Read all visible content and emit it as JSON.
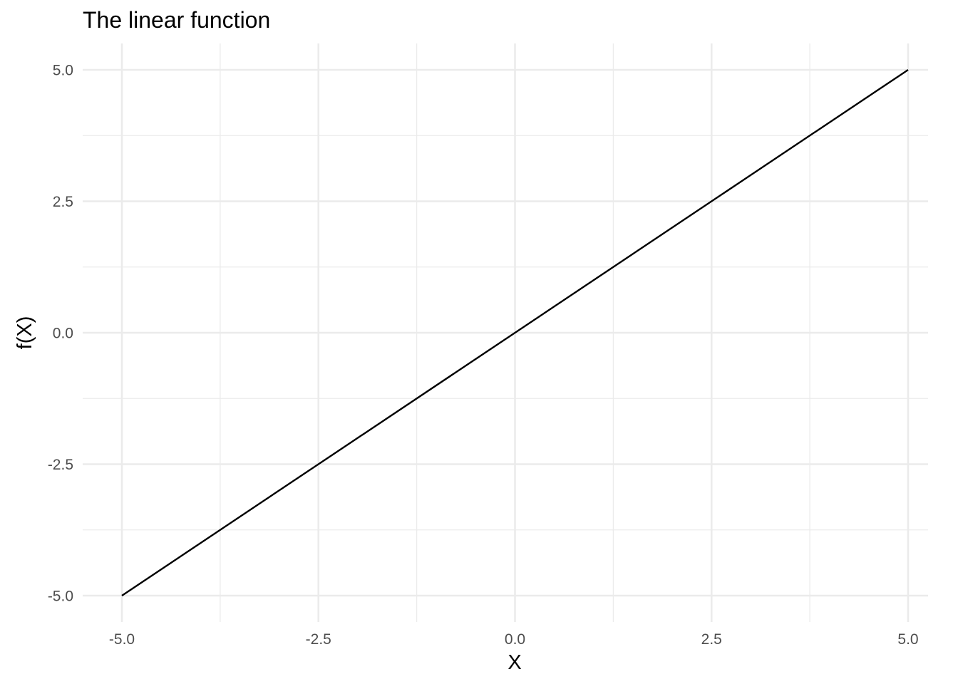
{
  "chart_data": {
    "type": "line",
    "title": "The linear function",
    "xlabel": "X",
    "ylabel": "f(X)",
    "xlim": [
      -5.0,
      5.0
    ],
    "ylim": [
      -5.0,
      5.0
    ],
    "x_ticks": [
      -5.0,
      -2.5,
      0.0,
      2.5,
      5.0
    ],
    "x_tick_labels": [
      "-5.0",
      "-2.5",
      "0.0",
      "2.5",
      "5.0"
    ],
    "y_ticks": [
      -5.0,
      -2.5,
      0.0,
      2.5,
      5.0
    ],
    "y_tick_labels": [
      "-5.0",
      "-2.5",
      "0.0",
      "2.5",
      "5.0"
    ],
    "x_minor_ticks": [
      -3.75,
      -1.25,
      1.25,
      3.75
    ],
    "y_minor_ticks": [
      -3.75,
      -1.25,
      1.25,
      3.75
    ],
    "grid": true,
    "series": [
      {
        "x": [
          -5.0,
          5.0
        ],
        "y": [
          -5.0,
          5.0
        ],
        "color": "#000000"
      }
    ]
  }
}
